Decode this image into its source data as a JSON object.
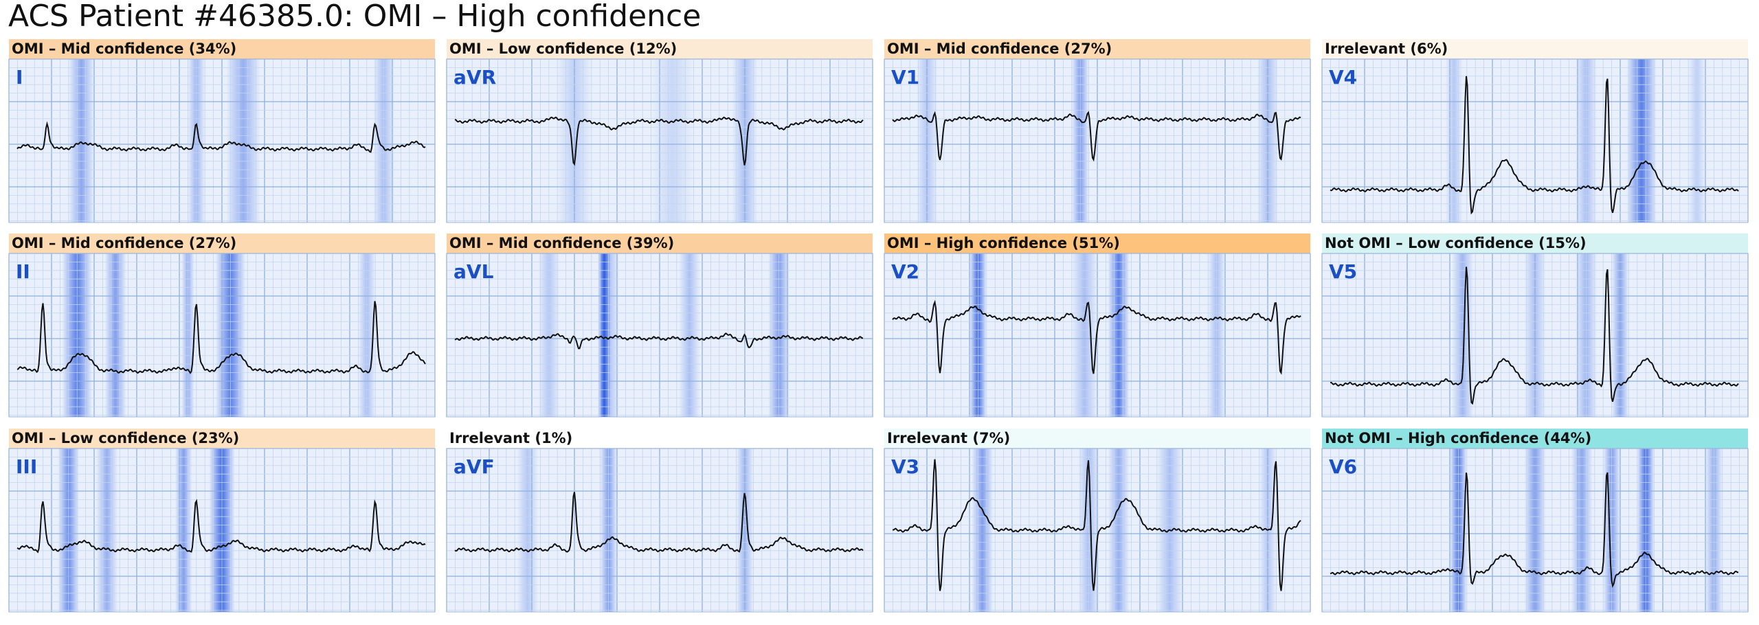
{
  "title": "ACS Patient #46385.0: OMI – High confidence",
  "panels": [
    {
      "header": "OMI – Mid confidence (34%)",
      "lead": "I"
    },
    {
      "header": "OMI – Low confidence (12%)",
      "lead": "aVR"
    },
    {
      "header": "OMI – Mid confidence (27%)",
      "lead": "V1"
    },
    {
      "header": "Irrelevant (6%)",
      "lead": "V4"
    },
    {
      "header": "OMI – Mid confidence (27%)",
      "lead": "II"
    },
    {
      "header": "OMI – Mid confidence (39%)",
      "lead": "aVL"
    },
    {
      "header": "OMI – High confidence (51%)",
      "lead": "V2"
    },
    {
      "header": "Not OMI – Low confidence (15%)",
      "lead": "V5"
    },
    {
      "header": "OMI – Low confidence (23%)",
      "lead": "III"
    },
    {
      "header": "Irrelevant (1%)",
      "lead": "aVF"
    },
    {
      "header": "Irrelevant (7%)",
      "lead": "V3"
    },
    {
      "header": "Not OMI – High confidence (44%)",
      "lead": "V6"
    }
  ]
}
